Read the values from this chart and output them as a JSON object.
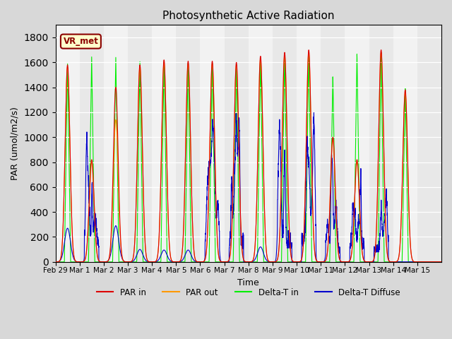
{
  "title": "Photosynthetic Active Radiation",
  "ylabel": "PAR (umol/m2/s)",
  "xlabel": "Time",
  "ylim": [
    0,
    1900
  ],
  "yticks": [
    0,
    200,
    400,
    600,
    800,
    1000,
    1200,
    1400,
    1600,
    1800
  ],
  "xtick_labels": [
    "Feb 29",
    "Mar 1",
    "Mar 2",
    "Mar 3",
    "Mar 4",
    "Mar 5",
    "Mar 6",
    "Mar 7",
    "Mar 8",
    "Mar 9",
    "Mar 10",
    "Mar 11",
    "Mar 12",
    "Mar 13",
    "Mar 14",
    "Mar 15"
  ],
  "legend_label": "VR_met",
  "line_colors": {
    "par_in": "#dd0000",
    "par_out": "#ff9900",
    "delta_t_in": "#00ee00",
    "delta_t_diffuse": "#0000cc"
  },
  "legend_entries": [
    "PAR in",
    "PAR out",
    "Delta-T in",
    "Delta-T Diffuse"
  ],
  "bg_color": "#d8d8d8",
  "plot_bg_color": "#f2f2f2",
  "alt_band_color": "#e2e2e2",
  "num_days": 16,
  "peak_par_in": [
    1580,
    820,
    1400,
    1580,
    1620,
    1610,
    1610,
    1600,
    1650,
    1680,
    1700,
    1000,
    820,
    1700,
    1380,
    0
  ],
  "peak_par_out": [
    1560,
    800,
    1140,
    1570,
    1600,
    1590,
    1590,
    1580,
    1630,
    1660,
    1680,
    980,
    800,
    1680,
    1360,
    0
  ],
  "peak_green": [
    1590,
    1650,
    1650,
    1620,
    1630,
    1620,
    1620,
    1610,
    1660,
    1680,
    1690,
    1500,
    1680,
    1690,
    1400,
    0
  ],
  "peak_blue": [
    270,
    670,
    290,
    100,
    95,
    95,
    500,
    680,
    120,
    700,
    820,
    380,
    640,
    500,
    0,
    0
  ],
  "blue_spiky_days": [
    1,
    6,
    7,
    9,
    10,
    11,
    12,
    13
  ]
}
